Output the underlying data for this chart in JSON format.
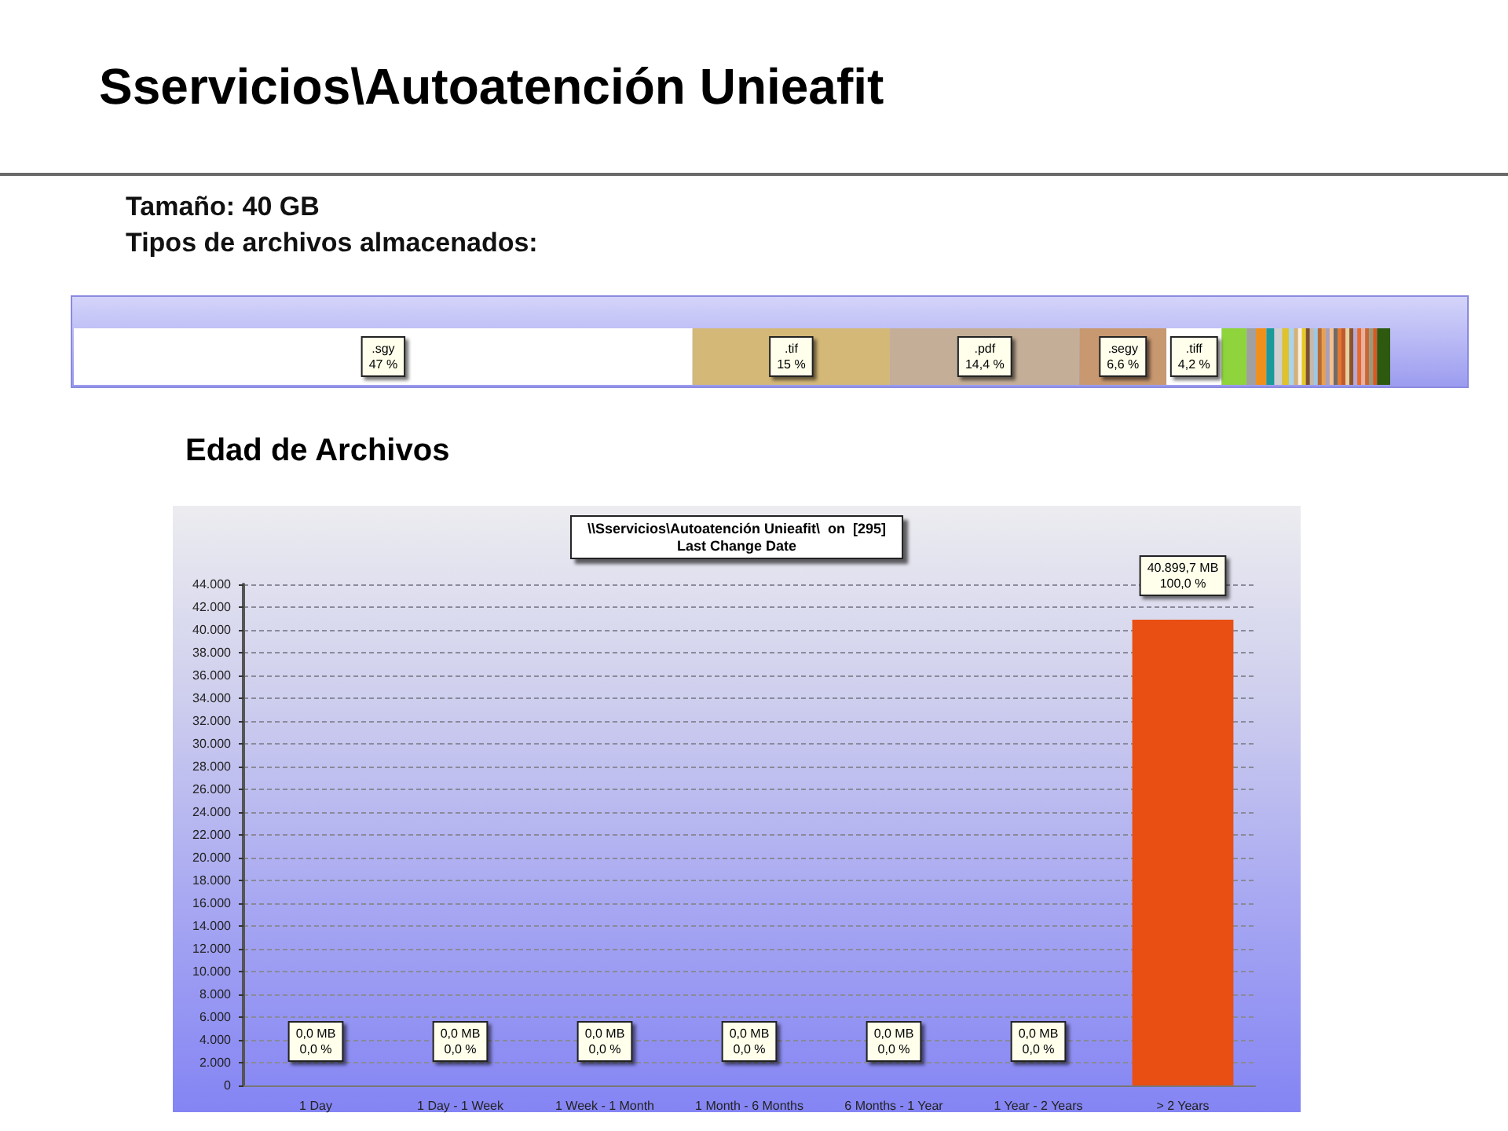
{
  "chart_data": [
    {
      "type": "bar",
      "title": "Sservicios\\Autoatención Unieafit",
      "annotations": [
        "Tamaño: 40 GB",
        "Tipos de archivos almacenados:"
      ],
      "orientation": "horizontal",
      "stacked": true,
      "categories": [
        null
      ],
      "xlim": [
        0,
        100
      ],
      "series": [
        {
          "name": ".sgy",
          "color": "#ffffff",
          "values": [
            47
          ],
          "value_labels": [
            "47 %"
          ]
        },
        {
          "name": ".tif",
          "color": "#d4b878",
          "values": [
            15
          ],
          "value_labels": [
            "15 %"
          ]
        },
        {
          "name": ".pdf",
          "color": "#c4ae98",
          "values": [
            14.4
          ],
          "value_labels": [
            "14,4 %"
          ]
        },
        {
          "name": ".segy",
          "color": "#c89870",
          "values": [
            6.6
          ],
          "value_labels": [
            "6,6 %"
          ]
        },
        {
          "name": ".tiff",
          "color": "#ffffff",
          "values": [
            4.2
          ],
          "value_labels": [
            "4,2 %"
          ]
        },
        {
          "color": "#8fd43c",
          "values": [
            1.9
          ]
        },
        {
          "color": "#a0a0a0",
          "values": [
            0.7
          ]
        },
        {
          "color": "#f0901c",
          "values": [
            0.8
          ]
        },
        {
          "color": "#1a9a9a",
          "values": [
            0.6
          ]
        },
        {
          "color": "#d0d0d0",
          "values": [
            0.6
          ]
        },
        {
          "color": "#e0c22a",
          "values": [
            0.5
          ]
        },
        {
          "color": "#a8d4ec",
          "values": [
            0.4
          ]
        },
        {
          "color": "#d8b070",
          "values": [
            0.3
          ]
        },
        {
          "color": "#f8f0d8",
          "values": [
            0.3
          ]
        },
        {
          "color": "#e8c820",
          "values": [
            0.3
          ]
        },
        {
          "color": "#7a5030",
          "values": [
            0.3
          ]
        },
        {
          "color": "#c8b8a8",
          "values": [
            0.3
          ]
        },
        {
          "color": "#9cc8e4",
          "values": [
            0.3
          ]
        },
        {
          "color": "#b86a30",
          "values": [
            0.3
          ]
        },
        {
          "color": "#e8a050",
          "values": [
            0.3
          ]
        },
        {
          "color": "#a8a0b8",
          "values": [
            0.3
          ]
        },
        {
          "color": "#f4c090",
          "values": [
            0.3
          ]
        },
        {
          "color": "#6c6c6c",
          "values": [
            0.3
          ]
        },
        {
          "color": "#e07830",
          "values": [
            0.3
          ]
        },
        {
          "color": "#c05a30",
          "values": [
            0.3
          ]
        },
        {
          "color": "#e8d0a0",
          "values": [
            0.3
          ]
        },
        {
          "color": "#8a5428",
          "values": [
            0.3
          ]
        },
        {
          "color": "#b8a8d8",
          "values": [
            0.3
          ]
        },
        {
          "color": "#e86a28",
          "values": [
            0.3
          ]
        },
        {
          "color": "#eab0a0",
          "values": [
            0.3
          ]
        },
        {
          "color": "#c86830",
          "values": [
            0.3
          ]
        },
        {
          "color": "#9a9a7a",
          "values": [
            0.3
          ]
        },
        {
          "color": "#d85a20",
          "values": [
            0.3
          ]
        },
        {
          "color": "#2e5a10",
          "values": [
            1.0
          ]
        }
      ]
    },
    {
      "type": "bar",
      "title": "Edad de Archivos",
      "subtitle": "\\\\Sservicios\\Autoatención Unieafit\\  on  [295]\nLast Change Date",
      "categories": [
        "1 Day",
        "1 Day - 1 Week",
        "1 Week - 1 Month",
        "1 Month - 6 Months",
        "6 Months - 1 Year",
        "1 Year - 2 Years",
        "> 2 Years"
      ],
      "values": [
        0,
        0,
        0,
        0,
        0,
        0,
        40899.7
      ],
      "colors": [
        "#1b8c1b",
        "#229922",
        "#4e9a1a",
        "#92b014",
        "#a8780c",
        "#a83a10",
        "#e94e12"
      ],
      "value_labels": [
        "0,0 MB\n0,0 %",
        "0,0 MB\n0,0 %",
        "0,0 MB\n0,0 %",
        "0,0 MB\n0,0 %",
        "0,0 MB\n0,0 %",
        "0,0 MB\n0,0 %",
        "40.899,7 MB\n100,0 %"
      ],
      "ylim": [
        0,
        44000
      ],
      "yticks": [
        0,
        {
          "value": 2000,
          "label": "2.000"
        },
        {
          "value": 4000,
          "label": "4.000"
        },
        {
          "value": 6000,
          "label": "6.000"
        },
        {
          "value": 8000,
          "label": "8.000"
        },
        {
          "value": 10000,
          "label": "10.000"
        },
        {
          "value": 12000,
          "label": "12.000"
        },
        {
          "value": 14000,
          "label": "14.000"
        },
        {
          "value": 16000,
          "label": "16.000"
        },
        {
          "value": 18000,
          "label": "18.000"
        },
        {
          "value": 20000,
          "label": "20.000"
        },
        {
          "value": 22000,
          "label": "22.000"
        },
        {
          "value": 24000,
          "label": "24.000"
        },
        {
          "value": 26000,
          "label": "26.000"
        },
        {
          "value": 28000,
          "label": "28.000"
        },
        {
          "value": 30000,
          "label": "30.000"
        },
        {
          "value": 32000,
          "label": "32.000"
        },
        {
          "value": 34000,
          "label": "34.000"
        },
        {
          "value": 36000,
          "label": "36.000"
        },
        {
          "value": 38000,
          "label": "38.000"
        },
        {
          "value": 40000,
          "label": "40.000"
        },
        {
          "value": 42000,
          "label": "42.000"
        },
        {
          "value": 44000,
          "label": "44.000"
        }
      ],
      "grid": "y"
    }
  ]
}
